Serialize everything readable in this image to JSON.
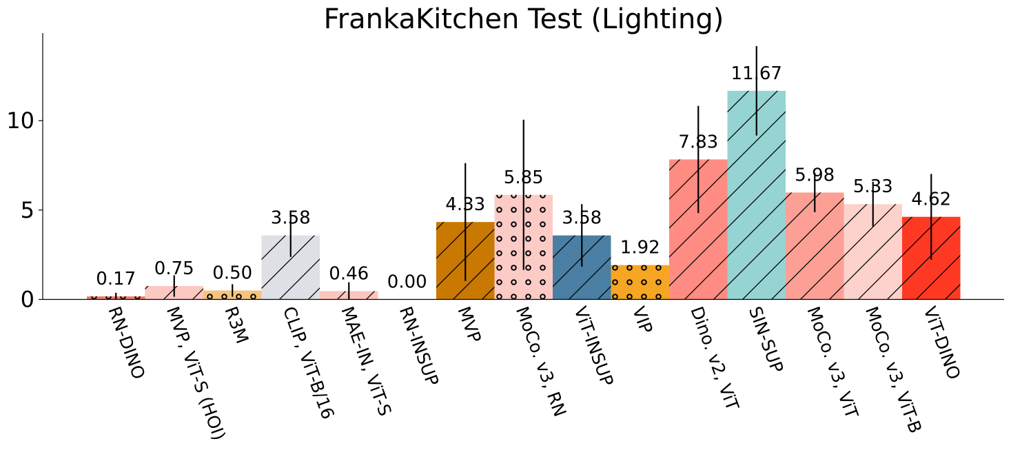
{
  "chart_data": {
    "type": "bar",
    "title": "FrankaKitchen Test (Lighting)",
    "xlabel": "",
    "ylabel": "",
    "ylim": [
      0,
      14.9
    ],
    "yticks": [
      0,
      5,
      10
    ],
    "grid": false,
    "legend": "none",
    "categories": [
      "RN-DINO",
      "MVP, ViT-S (HOI)",
      "R3M",
      "CLIP, ViT-B/16",
      "MAE-IN, ViT-S",
      "RN-INSUP",
      "MVP",
      "MoCo. v3, RN",
      "ViT-INSUP",
      "VIP",
      "Dino. v2, ViT",
      "SIN-SUP",
      "MoCo. v3, ViT",
      "MoCo. v3, ViT-B",
      "ViT-DINO"
    ],
    "values": [
      0.17,
      0.75,
      0.5,
      3.58,
      0.46,
      0.0,
      4.33,
      5.85,
      3.58,
      1.92,
      7.83,
      11.67,
      5.98,
      5.33,
      4.62
    ],
    "value_labels": [
      "0.17",
      "0.75",
      "0.50",
      "3.58",
      "0.46",
      "0.00",
      "4.33",
      "5.85",
      "3.58",
      "1.92",
      "7.83",
      "11.67",
      "5.98",
      "5.33",
      "4.62"
    ],
    "errors": [
      0.2,
      0.6,
      0.35,
      1.2,
      0.5,
      0.0,
      3.3,
      4.2,
      1.75,
      0.0,
      3.0,
      2.5,
      1.1,
      1.25,
      2.4
    ],
    "colors": [
      "#f07c6c",
      "#fcc8c2",
      "#f7c480",
      "#dfe0e5",
      "#fcc4be",
      "#ffffff",
      "#c97802",
      "#fdcbc6",
      "#4a7fa3",
      "#f5a623",
      "#fe8c82",
      "#95d4d3",
      "#fca096",
      "#fdd2cc",
      "#fe3923"
    ],
    "hatches": [
      "circles",
      "diagonal",
      "circles",
      "diagonal",
      "diagonal",
      "none",
      "diagonal",
      "circles",
      "diagonal",
      "circles",
      "diagonal",
      "diagonal",
      "diagonal",
      "diagonal",
      "diagonal"
    ]
  }
}
